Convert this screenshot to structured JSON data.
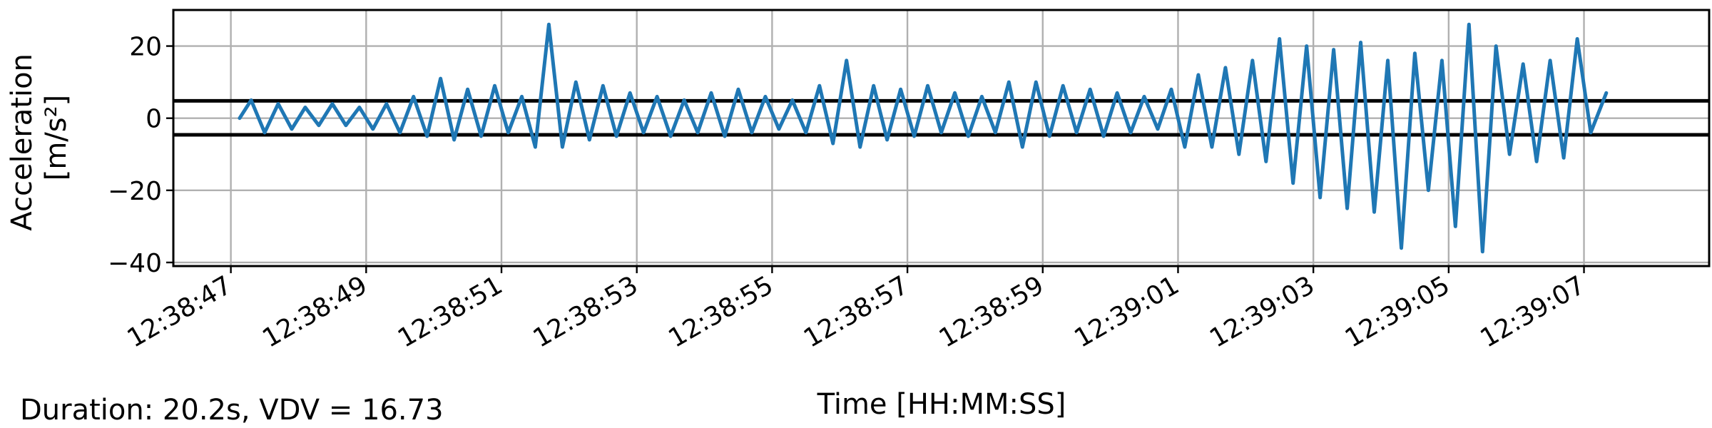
{
  "chart_data": {
    "type": "line",
    "xlabel": "Time [HH:MM:SS]",
    "ylabel_line1": "Acceleration",
    "ylabel_line2": "[m/s²]",
    "x_tick_labels": [
      "12:38:47",
      "12:38:49",
      "12:38:51",
      "12:38:53",
      "12:38:55",
      "12:38:57",
      "12:38:59",
      "12:39:01",
      "12:39:03",
      "12:39:05",
      "12:39:07"
    ],
    "x_tick_seconds": [
      0,
      2,
      4,
      6,
      8,
      10,
      12,
      14,
      16,
      18,
      20
    ],
    "xlim_seconds": [
      -0.85,
      21.85
    ],
    "y_tick_labels": [
      "20",
      "0",
      "−20",
      "−40"
    ],
    "y_tick_values": [
      20,
      0,
      -20,
      -40
    ],
    "ylim": [
      -41,
      30
    ],
    "grid": true,
    "series": [
      {
        "color": "#1f77b4",
        "x_seconds": [
          0.13,
          0.3,
          0.5,
          0.7,
          0.9,
          1.1,
          1.3,
          1.5,
          1.7,
          1.9,
          2.1,
          2.3,
          2.5,
          2.7,
          2.9,
          3.1,
          3.3,
          3.5,
          3.7,
          3.9,
          4.1,
          4.3,
          4.5,
          4.7,
          4.9,
          5.1,
          5.3,
          5.5,
          5.7,
          5.9,
          6.1,
          6.3,
          6.5,
          6.7,
          6.9,
          7.1,
          7.3,
          7.5,
          7.7,
          7.9,
          8.1,
          8.3,
          8.5,
          8.7,
          8.9,
          9.1,
          9.3,
          9.5,
          9.7,
          9.9,
          10.1,
          10.3,
          10.5,
          10.7,
          10.9,
          11.1,
          11.3,
          11.5,
          11.7,
          11.9,
          12.1,
          12.3,
          12.5,
          12.7,
          12.9,
          13.1,
          13.3,
          13.5,
          13.7,
          13.9,
          14.1,
          14.3,
          14.5,
          14.7,
          14.9,
          15.1,
          15.3,
          15.5,
          15.7,
          15.9,
          16.1,
          16.3,
          16.5,
          16.7,
          16.9,
          17.1,
          17.3,
          17.5,
          17.7,
          17.9,
          18.1,
          18.3,
          18.5,
          18.7,
          18.9,
          19.1,
          19.3,
          19.5,
          19.7,
          19.9,
          20.1,
          20.33
        ],
        "y": [
          0,
          5,
          -4,
          4,
          -3,
          3,
          -2,
          4,
          -2,
          3,
          -3,
          4,
          -4,
          6,
          -5,
          11,
          -6,
          8,
          -5,
          9,
          -4,
          6,
          -8,
          26,
          -8,
          10,
          -6,
          9,
          -5,
          7,
          -4,
          6,
          -5,
          5,
          -4,
          7,
          -5,
          8,
          -4,
          6,
          -3,
          5,
          -4,
          9,
          -7,
          16,
          -8,
          9,
          -6,
          8,
          -5,
          9,
          -4,
          7,
          -5,
          6,
          -4,
          10,
          -8,
          10,
          -5,
          9,
          -4,
          8,
          -5,
          7,
          -4,
          6,
          -3,
          8,
          -8,
          12,
          -8,
          14,
          -10,
          16,
          -12,
          22,
          -18,
          20,
          -22,
          19,
          -25,
          21,
          -26,
          16,
          -36,
          18,
          -20,
          16,
          -30,
          26,
          -37,
          20,
          -10,
          15,
          -12,
          16,
          -11,
          22,
          -4,
          7
        ]
      }
    ],
    "hlines": [
      4.8,
      -4.6
    ]
  },
  "footnote": "Duration: 20.2s, VDV = 16.73"
}
